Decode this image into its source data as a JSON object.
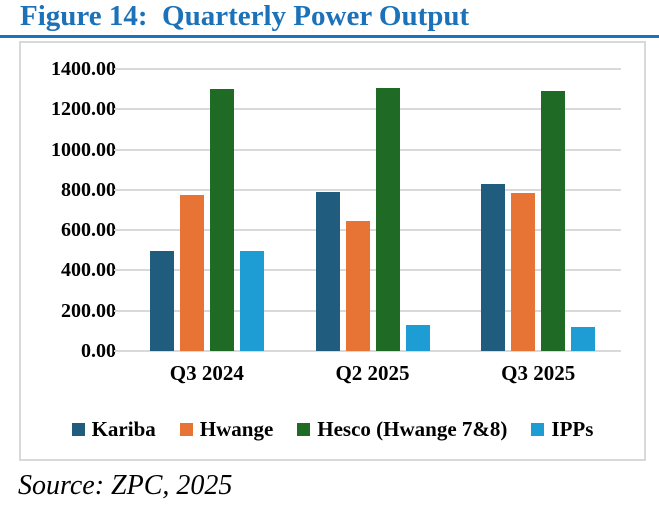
{
  "figure": {
    "title": "Figure 14:  Quarterly Power Output",
    "source": "Source: ZPC, 2025"
  },
  "colors": {
    "title_blue": "#1c72b8",
    "gridline": "#d9d9d9",
    "chart_border": "#d9d9d9",
    "axis_text": "#000000",
    "kariba": "#1f5c7d",
    "hwange": "#e77434",
    "hesco": "#1f6a25",
    "ipps": "#1d9dd4"
  },
  "chart_data": {
    "type": "bar",
    "title": "Figure 14: Quarterly Power Output",
    "categories": [
      "Q3 2024",
      "Q2 2025",
      "Q3 2025"
    ],
    "series": [
      {
        "name": "Kariba",
        "color": "#1f5c7d",
        "values": [
          495,
          790,
          830
        ]
      },
      {
        "name": "Hwange",
        "color": "#e77434",
        "values": [
          775,
          645,
          785
        ]
      },
      {
        "name": "Hesco (Hwange 7&8)",
        "color": "#1f6a25",
        "values": [
          1300,
          1305,
          1290
        ]
      },
      {
        "name": "IPPs",
        "color": "#1d9dd4",
        "values": [
          495,
          128,
          120
        ]
      }
    ],
    "xlabel": "",
    "ylabel": "",
    "ylim": [
      0,
      1400
    ],
    "ytick_step": 200,
    "ytick_labels": [
      "0.00",
      "200.00",
      "400.00",
      "600.00",
      "800.00",
      "1000.00",
      "1200.00",
      "1400.00"
    ],
    "grid": true,
    "legend_position": "bottom"
  }
}
